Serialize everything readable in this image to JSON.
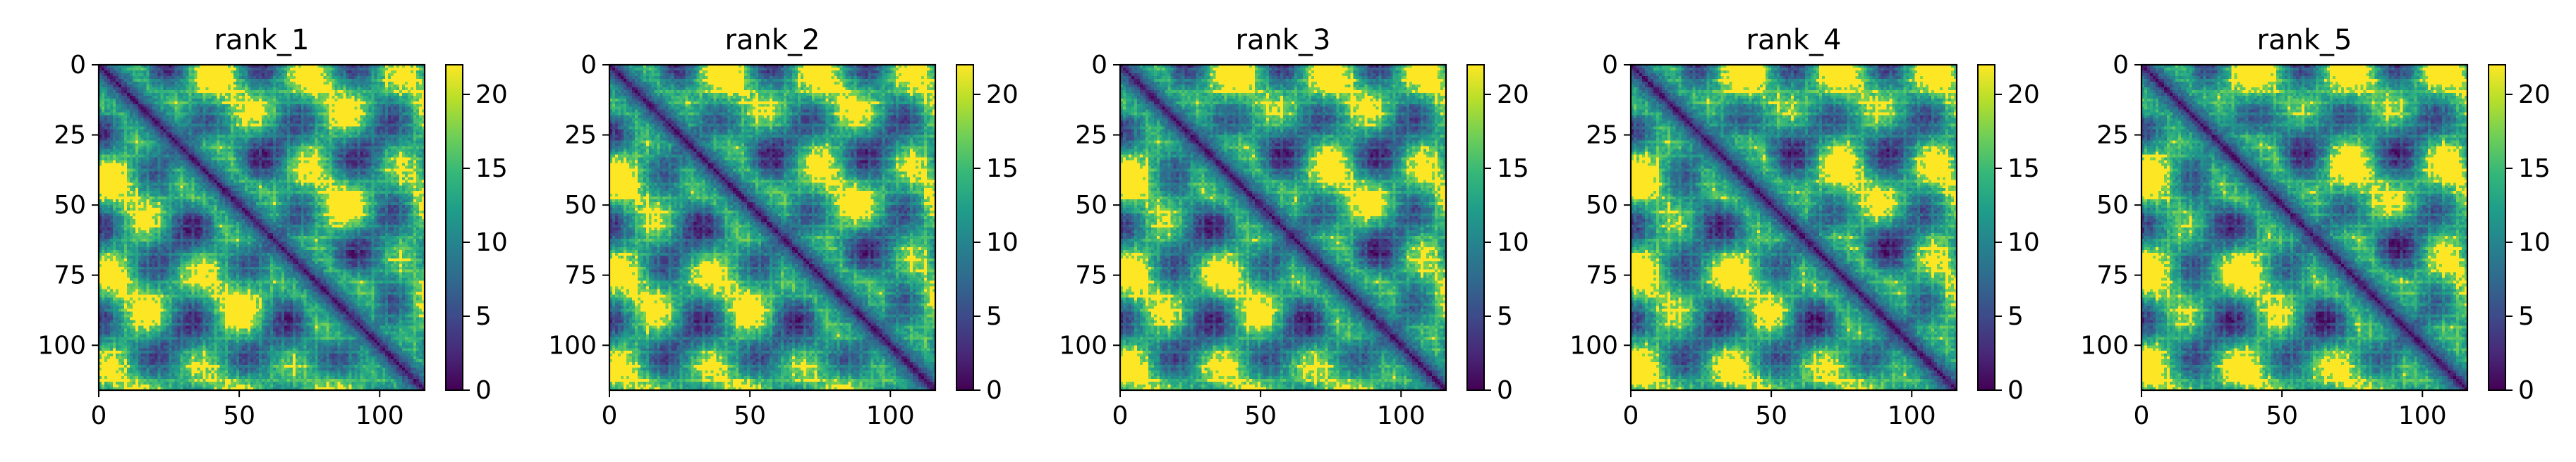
{
  "figure": {
    "colormap": "viridis",
    "colors": {
      "viridis_stops": [
        "#440154",
        "#482878",
        "#3e4989",
        "#31688e",
        "#26828e",
        "#1f9e89",
        "#35b779",
        "#6ece58",
        "#b5de2b",
        "#fde725"
      ],
      "axis": "#000000",
      "background": "#ffffff"
    }
  },
  "chart_data": [
    {
      "type": "heatmap",
      "title": "rank_1",
      "xlabel": "",
      "ylabel": "",
      "x_ticks": [
        "0",
        "50",
        "100"
      ],
      "y_ticks": [
        "0",
        "25",
        "50",
        "75",
        "100"
      ],
      "xlim": [
        0,
        116
      ],
      "ylim": [
        116,
        0
      ],
      "matrix_size": 116,
      "colorbar": {
        "range": [
          0,
          22
        ],
        "ticks": [
          "0",
          "5",
          "10",
          "15",
          "20"
        ]
      },
      "grid": false
    },
    {
      "type": "heatmap",
      "title": "rank_2",
      "xlabel": "",
      "ylabel": "",
      "x_ticks": [
        "0",
        "50",
        "100"
      ],
      "y_ticks": [
        "0",
        "25",
        "50",
        "75",
        "100"
      ],
      "xlim": [
        0,
        116
      ],
      "ylim": [
        116,
        0
      ],
      "matrix_size": 116,
      "colorbar": {
        "range": [
          0,
          22
        ],
        "ticks": [
          "0",
          "5",
          "10",
          "15",
          "20"
        ]
      },
      "grid": false
    },
    {
      "type": "heatmap",
      "title": "rank_3",
      "xlabel": "",
      "ylabel": "",
      "x_ticks": [
        "0",
        "50",
        "100"
      ],
      "y_ticks": [
        "0",
        "25",
        "50",
        "75",
        "100"
      ],
      "xlim": [
        0,
        116
      ],
      "ylim": [
        116,
        0
      ],
      "matrix_size": 116,
      "colorbar": {
        "range": [
          0,
          22
        ],
        "ticks": [
          "0",
          "5",
          "10",
          "15",
          "20"
        ]
      },
      "grid": false
    },
    {
      "type": "heatmap",
      "title": "rank_4",
      "xlabel": "",
      "ylabel": "",
      "x_ticks": [
        "0",
        "50",
        "100"
      ],
      "y_ticks": [
        "0",
        "25",
        "50",
        "75",
        "100"
      ],
      "xlim": [
        0,
        116
      ],
      "ylim": [
        116,
        0
      ],
      "matrix_size": 116,
      "colorbar": {
        "range": [
          0,
          22
        ],
        "ticks": [
          "0",
          "5",
          "10",
          "15",
          "20"
        ]
      },
      "grid": false
    },
    {
      "type": "heatmap",
      "title": "rank_5",
      "xlabel": "",
      "ylabel": "",
      "x_ticks": [
        "0",
        "50",
        "100"
      ],
      "y_ticks": [
        "0",
        "25",
        "50",
        "75",
        "100"
      ],
      "xlim": [
        0,
        116
      ],
      "ylim": [
        116,
        0
      ],
      "matrix_size": 116,
      "colorbar": {
        "range": [
          0,
          22
        ],
        "ticks": [
          "0",
          "5",
          "10",
          "15",
          "20"
        ]
      },
      "grid": false
    }
  ]
}
